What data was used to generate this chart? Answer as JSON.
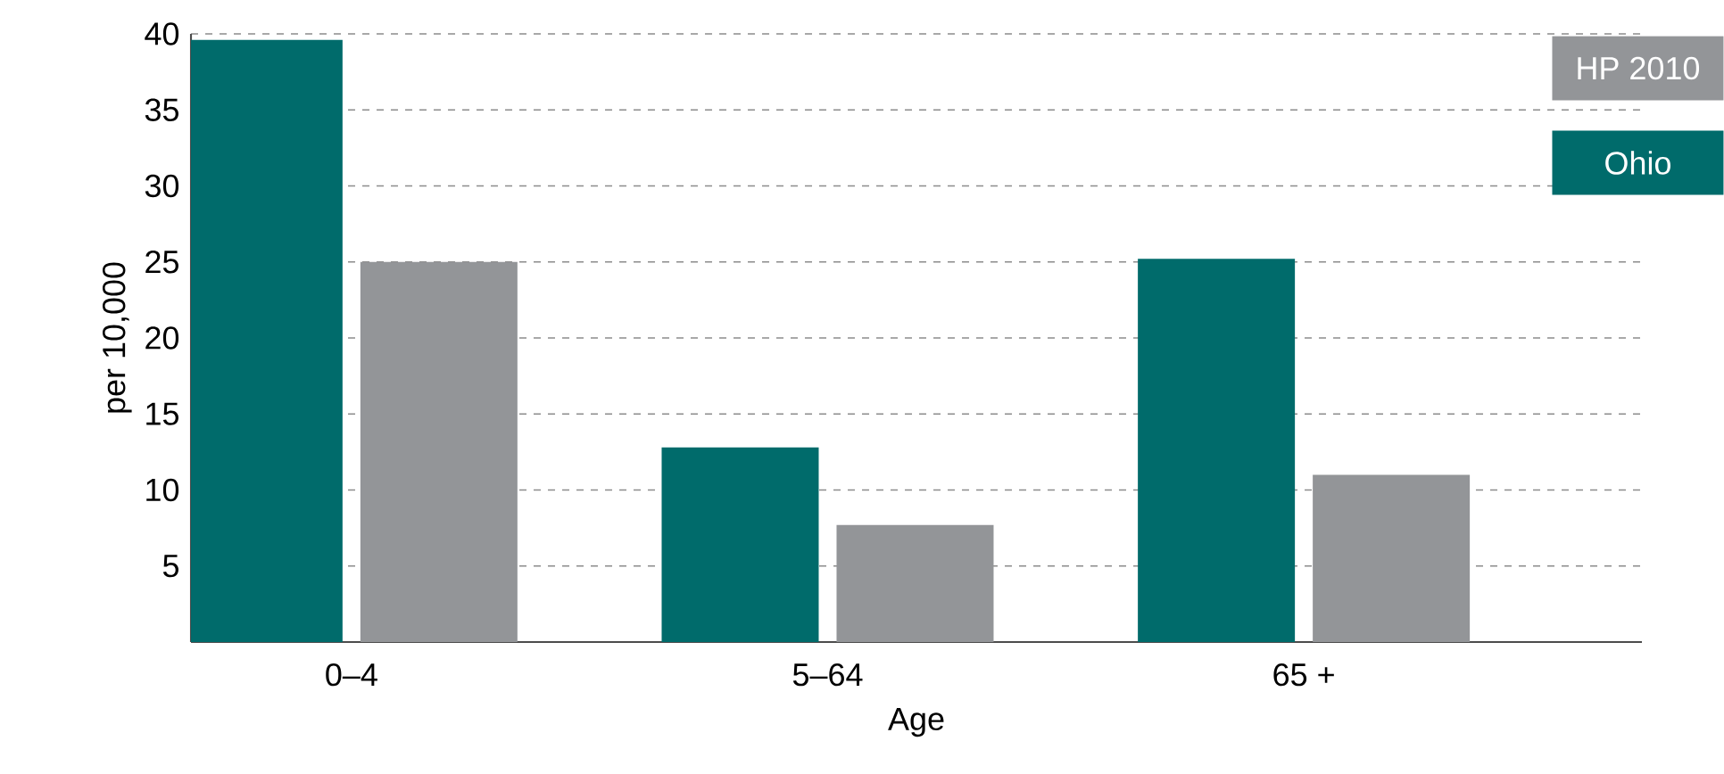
{
  "chart_data": {
    "type": "bar",
    "xlabel": "Age",
    "ylabel": "per 10,000",
    "categories": [
      "0–4",
      "5–64",
      "65 +"
    ],
    "series": [
      {
        "name": "Ohio",
        "color": "#006b6b",
        "values": [
          39.6,
          12.8,
          25.2
        ]
      },
      {
        "name": "HP 2010",
        "color": "#939598",
        "values": [
          25.0,
          7.7,
          11.0
        ]
      }
    ],
    "ylim": [
      0,
      40
    ],
    "yticks": [
      5,
      10,
      15,
      20,
      25,
      30,
      35,
      40
    ],
    "grid": "y",
    "legend": "top right"
  }
}
